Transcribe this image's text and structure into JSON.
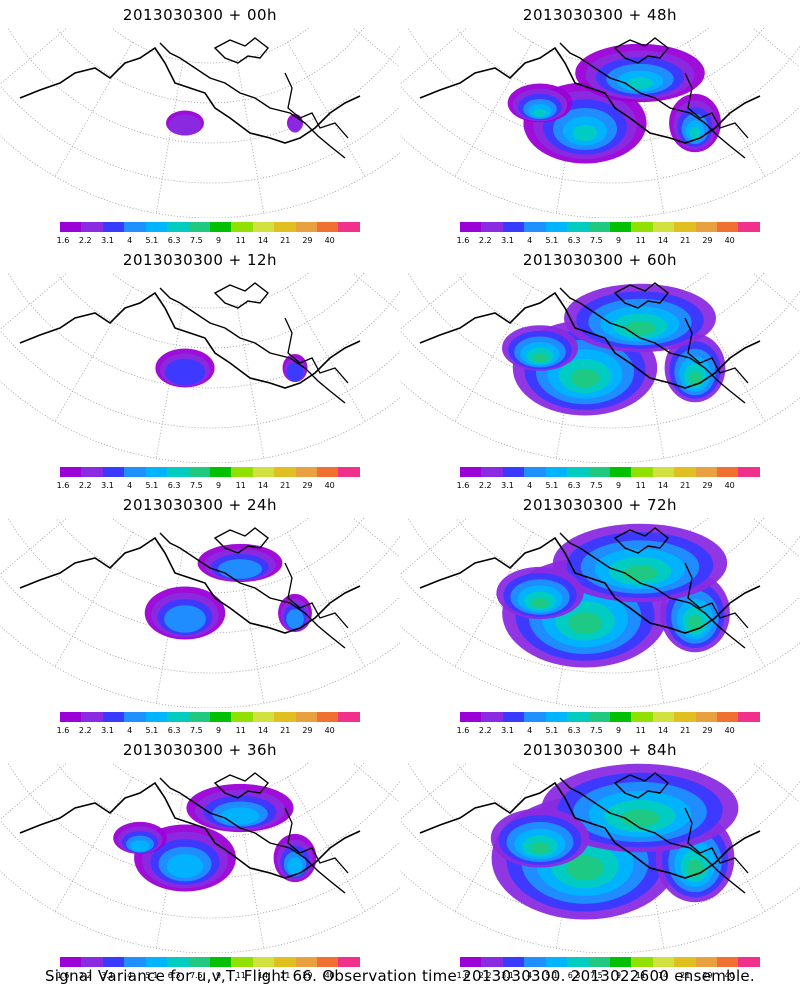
{
  "panels": [
    {
      "title": "2013030300 + 00h",
      "level": 0
    },
    {
      "title": "2013030300 + 48h",
      "level": 4
    },
    {
      "title": "2013030300 + 12h",
      "level": 1
    },
    {
      "title": "2013030300 + 60h",
      "level": 5
    },
    {
      "title": "2013030300 + 24h",
      "level": 2
    },
    {
      "title": "2013030300 + 72h",
      "level": 6
    },
    {
      "title": "2013030300 + 36h",
      "level": 3
    },
    {
      "title": "2013030300 + 84h",
      "level": 7
    }
  ],
  "colorbar": {
    "labels": [
      "1.6",
      "2.2",
      "3.1",
      "4",
      "5.1",
      "6.3",
      "7.5",
      "9",
      "11",
      "14",
      "21",
      "29",
      "40"
    ],
    "colors": [
      "#9b00d6",
      "#8a2be2",
      "#3a3aff",
      "#1e90ff",
      "#00b4ff",
      "#00cdc0",
      "#20c880",
      "#00c000",
      "#90e000",
      "#d2e040",
      "#e0c020",
      "#e8a040",
      "#ef7030",
      "#f0308a",
      "#ff0090"
    ]
  },
  "footer": "Signal Variance for u,v,T. Flight 66. Observation time 2013030300. 2013022600 ensemble."
}
